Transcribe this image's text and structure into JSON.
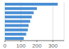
{
  "chart_data": {
    "type": "bar",
    "orientation": "horizontal",
    "categories": [
      null,
      null,
      null,
      null,
      null,
      null,
      null,
      null,
      null
    ],
    "values": [
      330,
      200,
      180,
      168,
      158,
      148,
      143,
      133,
      118
    ],
    "color": "#4a8fd4",
    "xlim": [
      0,
      370
    ],
    "xticks": [
      0,
      100,
      200,
      300
    ],
    "grid": true,
    "tick_labels": "x"
  }
}
